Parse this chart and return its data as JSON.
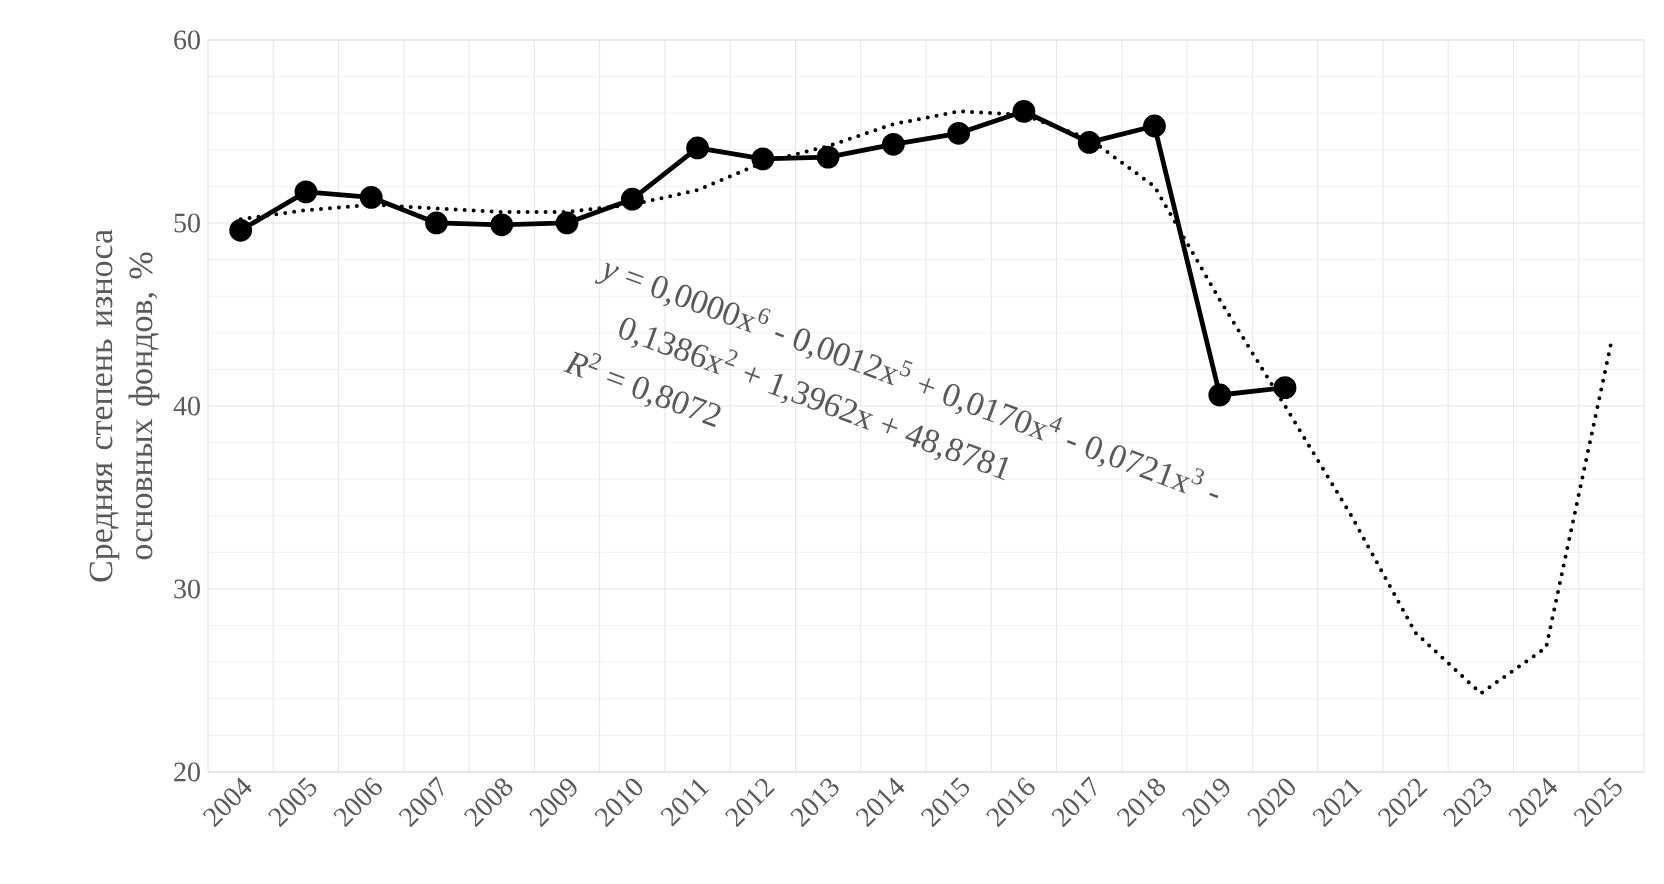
{
  "chart_data": {
    "type": "line",
    "ylabel": "Средняя степень износа основных фондов, %",
    "categories": [
      "2004",
      "2005",
      "2006",
      "2007",
      "2008",
      "2009",
      "2010",
      "2011",
      "2012",
      "2013",
      "2014",
      "2015",
      "2016",
      "2017",
      "2018",
      "2019",
      "2020",
      "2021",
      "2022",
      "2023",
      "2024",
      "2025"
    ],
    "series": [
      {
        "color": "#000000",
        "marker": "circle",
        "line_style": "solid",
        "values": [
          49.6,
          51.7,
          51.4,
          50.0,
          49.9,
          50.0,
          51.3,
          54.1,
          53.5,
          53.6,
          54.3,
          54.9,
          56.1,
          54.4,
          55.3,
          40.6,
          41.0,
          null,
          null,
          null,
          null,
          null
        ]
      },
      {
        "type": "line",
        "color": "#000000",
        "marker": "none",
        "line_style": "dotted",
        "values": [
          50.2,
          50.7,
          51.0,
          50.8,
          50.6,
          50.6,
          51.0,
          51.8,
          53.3,
          54.2,
          55.4,
          56.1,
          55.9,
          54.6,
          52.0,
          45.8,
          40.0,
          34.1,
          27.6,
          24.3,
          26.8,
          43.5
        ]
      }
    ],
    "ylim": [
      20,
      60
    ],
    "yticks": [
      20,
      30,
      40,
      50,
      60
    ],
    "grid": true,
    "annotations": [
      "*y* = 0,0000x$^{6}$ - 0,0012x$^{5}$ + 0,0170x$^{4}$ - 0,0721x$^{3}$ -",
      "0,1386x$^{2}$ + 1,3962x + 48,8781",
      "*R*$^{2}$ = 0,8072"
    ]
  }
}
